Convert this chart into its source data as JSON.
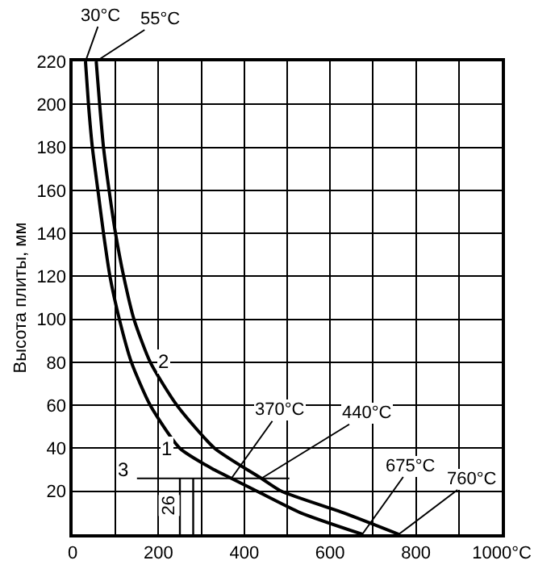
{
  "chart_data": {
    "type": "line",
    "ylabel": "Высота плиты, мм",
    "xlim": [
      0,
      1000
    ],
    "ylim": [
      0,
      220
    ],
    "xticks": [
      0,
      {
        "value": 100,
        "label": null
      },
      200,
      {
        "value": 300,
        "label": null
      },
      400,
      {
        "value": 500,
        "label": null
      },
      600,
      {
        "value": 700,
        "label": null
      },
      800,
      {
        "value": 900,
        "label": null
      },
      {
        "value": 1000,
        "label": "1000°C"
      }
    ],
    "yticks": [
      {
        "value": 0,
        "label": null
      },
      20,
      40,
      60,
      80,
      100,
      120,
      140,
      160,
      180,
      200,
      220
    ],
    "grid": true,
    "legend": false,
    "marker": "none",
    "line_style": "solid",
    "series": [
      {
        "name": "1",
        "color": "#000000",
        "x": [
          30,
          37,
          46,
          59,
          72,
          87,
          109,
          137,
          181,
          250,
          330,
          370,
          430,
          531,
          675
        ],
        "values": [
          220,
          200,
          180,
          160,
          140,
          120,
          100,
          80,
          60,
          40,
          30,
          26,
          20,
          10,
          0
        ]
      },
      {
        "name": "2",
        "color": "#000000",
        "x": [
          55,
          63,
          72,
          85,
          100,
          119,
          143,
          181,
          243,
          331,
          440,
          487,
          631,
          760
        ],
        "values": [
          220,
          200,
          180,
          160,
          140,
          120,
          100,
          80,
          60,
          40,
          26,
          20,
          10,
          0
        ]
      },
      {
        "name": "3",
        "color": "#000000",
        "x": [
          150,
          505
        ],
        "values": [
          26,
          26
        ]
      },
      {
        "color": "#000000",
        "x": [
          250,
          250
        ],
        "values": [
          0,
          26
        ]
      },
      {
        "color": "#000000",
        "x": [
          281,
          281
        ],
        "values": [
          0,
          26
        ]
      }
    ],
    "annotations": [
      {
        "text": "30°C",
        "x": 30,
        "y": 220
      },
      {
        "text": "55°C",
        "x": 55,
        "y": 220
      },
      {
        "text": "370°C",
        "x": 370,
        "y": 26
      },
      {
        "text": "440°C",
        "x": 440,
        "y": 26
      },
      {
        "text": "675°C",
        "x": 675,
        "y": 0
      },
      {
        "text": "760°C",
        "x": 760,
        "y": 0
      },
      {
        "text": "26",
        "x": 250,
        "y": 13
      }
    ]
  }
}
